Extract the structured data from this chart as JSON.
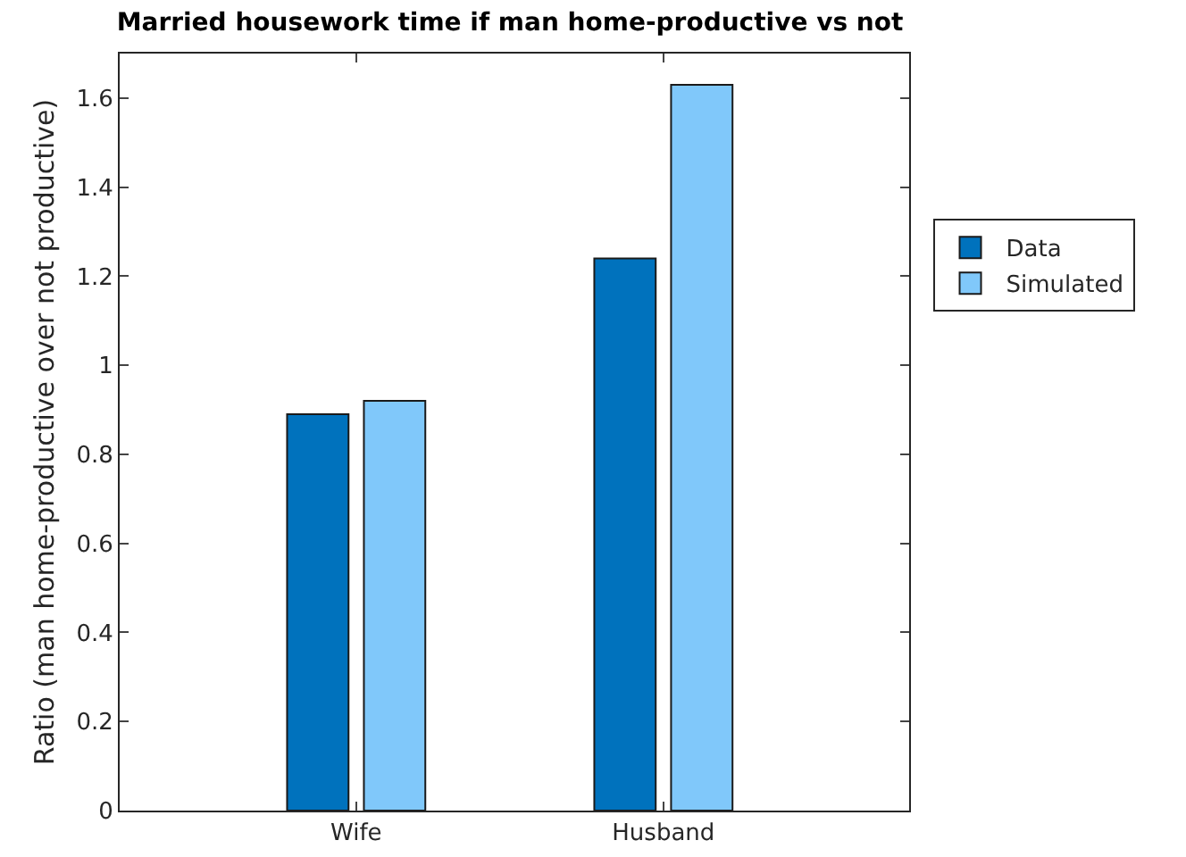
{
  "chart_data": {
    "type": "bar",
    "title": "Married housework time if man home-productive vs not",
    "ylabel": "Ratio (man home-productive over not productive)",
    "categories": [
      "Wife",
      "Husband"
    ],
    "series": [
      {
        "name": "Data",
        "color": "#0072bd",
        "values": [
          0.89,
          1.24
        ]
      },
      {
        "name": "Simulated",
        "color": "#80c8fa",
        "values": [
          0.92,
          1.63
        ]
      }
    ],
    "ylim": [
      0,
      1.7
    ],
    "yticks": [
      0,
      0.2,
      0.4,
      0.6,
      0.8,
      {
        "value": 1,
        "label": "1"
      },
      1.2,
      1.4,
      1.6
    ],
    "grid": false,
    "legend": "right"
  }
}
